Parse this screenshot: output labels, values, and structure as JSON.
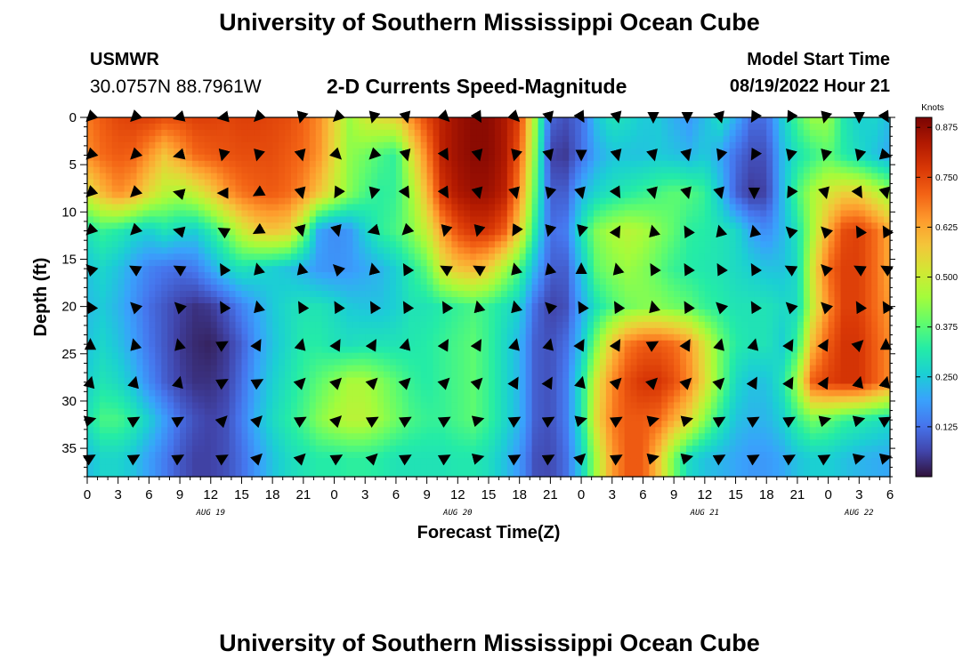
{
  "page": {
    "title_top": "University of Southern Mississippi Ocean Cube",
    "title_bottom": "University of Southern Mississippi Ocean Cube",
    "station_id": "USMWR",
    "station_coords": "30.0757N  88.7961W",
    "product_title": "2-D Currents Speed-Magnitude",
    "model_start_label": "Model Start Time",
    "model_start_value": "08/19/2022 Hour 21"
  },
  "colors": {
    "background": "#ffffff",
    "arrow": "#000000",
    "colormap": [
      "#30123b",
      "#4145ab",
      "#4675ed",
      "#39a2fc",
      "#1bcfd4",
      "#24eca6",
      "#61fc6c",
      "#a4fc3b",
      "#d1e834",
      "#f3c63a",
      "#fe9b2d",
      "#f36315",
      "#d93806",
      "#b11901",
      "#7a0403"
    ]
  },
  "chart_data": {
    "type": "heatmap",
    "title": "2-D Currents Speed-Magnitude",
    "xlabel": "Forecast Time(Z)",
    "ylabel": "Depth (ft)",
    "colorbar_label": "Knots",
    "colorbar_ticks": [
      "0.125",
      "0.250",
      "0.375",
      "0.500",
      "0.625",
      "0.750",
      "0.875"
    ],
    "colorbar_range": [
      0,
      0.9
    ],
    "x_tick_labels": [
      "0",
      "3",
      "6",
      "9",
      "12",
      "15",
      "18",
      "21",
      "0",
      "3",
      "6",
      "9",
      "12",
      "15",
      "18",
      "21",
      "0",
      "3",
      "6",
      "9",
      "12",
      "15",
      "18",
      "21",
      "0",
      "3",
      "6"
    ],
    "x_range_hours": [
      0,
      78
    ],
    "date_labels": [
      {
        "label": "AUG 19",
        "hour": 12
      },
      {
        "label": "AUG 20",
        "hour": 36
      },
      {
        "label": "AUG 21",
        "hour": 60
      },
      {
        "label": "AUG 22",
        "hour": 75
      }
    ],
    "y_tick_labels": [
      "0",
      "5",
      "10",
      "15",
      "20",
      "25",
      "30",
      "35"
    ],
    "y_ticks": [
      0,
      5,
      10,
      15,
      20,
      25,
      30,
      35
    ],
    "y_range": [
      0,
      38
    ],
    "depth_levels_ft": [
      0,
      4,
      8,
      12,
      16,
      20,
      24,
      28,
      32,
      36
    ],
    "time_hours": [
      0,
      1.5,
      3,
      4.5,
      6,
      7.5,
      9,
      10.5,
      12,
      13.5,
      15,
      16.5,
      18,
      19.5,
      21,
      22.5,
      24,
      25.5,
      27,
      28.5,
      30,
      31.5,
      33,
      34.5,
      36,
      37.5,
      39,
      40.5,
      42,
      43.5,
      45,
      46.5,
      48,
      49.5,
      51,
      52.5,
      54,
      55.5,
      57,
      58.5,
      60,
      61.5,
      63,
      64.5,
      66,
      67.5,
      69,
      70.5,
      72,
      73.5,
      75,
      76.5,
      78
    ],
    "speed_knots": [
      [
        0.68,
        0.72,
        0.75,
        0.76,
        0.76,
        0.74,
        0.74,
        0.76,
        0.76,
        0.75,
        0.76,
        0.76,
        0.75,
        0.74,
        0.71,
        0.66,
        0.56,
        0.44,
        0.51,
        0.54,
        0.56,
        0.66,
        0.75,
        0.82,
        0.86,
        0.88,
        0.88,
        0.84,
        0.76,
        0.45,
        0.11,
        0.08,
        0.12,
        0.24,
        0.3,
        0.28,
        0.25,
        0.25,
        0.21,
        0.18,
        0.23,
        0.29,
        0.21,
        0.12,
        0.12,
        0.25,
        0.36,
        0.44,
        0.44,
        0.31,
        0.26,
        0.27,
        0.23
      ],
      [
        0.66,
        0.7,
        0.72,
        0.71,
        0.65,
        0.58,
        0.64,
        0.7,
        0.72,
        0.73,
        0.74,
        0.74,
        0.74,
        0.72,
        0.7,
        0.65,
        0.54,
        0.43,
        0.4,
        0.36,
        0.33,
        0.52,
        0.67,
        0.82,
        0.86,
        0.88,
        0.88,
        0.84,
        0.72,
        0.42,
        0.06,
        0.05,
        0.12,
        0.2,
        0.24,
        0.24,
        0.24,
        0.25,
        0.24,
        0.22,
        0.25,
        0.2,
        0.12,
        0.08,
        0.08,
        0.22,
        0.3,
        0.34,
        0.38,
        0.32,
        0.28,
        0.24,
        0.2
      ],
      [
        0.52,
        0.6,
        0.66,
        0.62,
        0.54,
        0.48,
        0.46,
        0.5,
        0.56,
        0.64,
        0.69,
        0.71,
        0.72,
        0.7,
        0.66,
        0.58,
        0.5,
        0.42,
        0.36,
        0.33,
        0.34,
        0.45,
        0.6,
        0.78,
        0.84,
        0.86,
        0.86,
        0.82,
        0.66,
        0.38,
        0.1,
        0.1,
        0.22,
        0.27,
        0.3,
        0.32,
        0.34,
        0.36,
        0.38,
        0.37,
        0.34,
        0.24,
        0.1,
        0.05,
        0.06,
        0.22,
        0.36,
        0.46,
        0.52,
        0.56,
        0.56,
        0.5,
        0.44
      ],
      [
        0.3,
        0.34,
        0.32,
        0.28,
        0.26,
        0.3,
        0.27,
        0.26,
        0.32,
        0.4,
        0.5,
        0.56,
        0.58,
        0.56,
        0.42,
        0.2,
        0.16,
        0.18,
        0.26,
        0.33,
        0.36,
        0.42,
        0.5,
        0.64,
        0.74,
        0.78,
        0.78,
        0.72,
        0.56,
        0.32,
        0.12,
        0.14,
        0.3,
        0.42,
        0.46,
        0.48,
        0.46,
        0.42,
        0.38,
        0.33,
        0.32,
        0.3,
        0.28,
        0.2,
        0.16,
        0.22,
        0.3,
        0.46,
        0.62,
        0.74,
        0.76,
        0.7,
        0.62
      ],
      [
        0.24,
        0.27,
        0.24,
        0.19,
        0.15,
        0.13,
        0.12,
        0.14,
        0.2,
        0.26,
        0.3,
        0.28,
        0.26,
        0.24,
        0.21,
        0.18,
        0.17,
        0.18,
        0.2,
        0.22,
        0.26,
        0.32,
        0.38,
        0.52,
        0.58,
        0.6,
        0.56,
        0.46,
        0.36,
        0.22,
        0.1,
        0.1,
        0.24,
        0.38,
        0.42,
        0.44,
        0.42,
        0.38,
        0.34,
        0.32,
        0.31,
        0.3,
        0.28,
        0.26,
        0.24,
        0.24,
        0.28,
        0.52,
        0.7,
        0.76,
        0.76,
        0.7,
        0.62
      ],
      [
        0.23,
        0.25,
        0.22,
        0.17,
        0.12,
        0.09,
        0.06,
        0.04,
        0.05,
        0.09,
        0.15,
        0.2,
        0.25,
        0.28,
        0.3,
        0.3,
        0.28,
        0.25,
        0.24,
        0.24,
        0.26,
        0.3,
        0.3,
        0.32,
        0.34,
        0.36,
        0.34,
        0.3,
        0.26,
        0.12,
        0.06,
        0.08,
        0.2,
        0.3,
        0.36,
        0.4,
        0.42,
        0.42,
        0.4,
        0.38,
        0.34,
        0.32,
        0.3,
        0.3,
        0.3,
        0.28,
        0.28,
        0.5,
        0.66,
        0.76,
        0.76,
        0.7,
        0.64
      ],
      [
        0.24,
        0.27,
        0.24,
        0.19,
        0.13,
        0.09,
        0.05,
        0.03,
        0.02,
        0.05,
        0.1,
        0.18,
        0.24,
        0.28,
        0.32,
        0.32,
        0.3,
        0.29,
        0.3,
        0.3,
        0.3,
        0.31,
        0.32,
        0.34,
        0.36,
        0.38,
        0.34,
        0.28,
        0.22,
        0.1,
        0.08,
        0.12,
        0.24,
        0.42,
        0.58,
        0.68,
        0.72,
        0.72,
        0.7,
        0.64,
        0.52,
        0.4,
        0.32,
        0.3,
        0.3,
        0.26,
        0.34,
        0.6,
        0.72,
        0.78,
        0.78,
        0.72,
        0.66
      ],
      [
        0.26,
        0.3,
        0.28,
        0.23,
        0.16,
        0.1,
        0.06,
        0.04,
        0.04,
        0.06,
        0.12,
        0.2,
        0.26,
        0.3,
        0.34,
        0.38,
        0.42,
        0.46,
        0.46,
        0.42,
        0.38,
        0.34,
        0.32,
        0.34,
        0.36,
        0.38,
        0.34,
        0.28,
        0.22,
        0.1,
        0.08,
        0.14,
        0.3,
        0.52,
        0.66,
        0.74,
        0.78,
        0.78,
        0.74,
        0.66,
        0.54,
        0.4,
        0.28,
        0.24,
        0.24,
        0.3,
        0.46,
        0.72,
        0.76,
        0.78,
        0.78,
        0.72,
        0.66
      ],
      [
        0.3,
        0.36,
        0.36,
        0.32,
        0.26,
        0.19,
        0.12,
        0.08,
        0.06,
        0.08,
        0.14,
        0.22,
        0.28,
        0.32,
        0.36,
        0.42,
        0.46,
        0.48,
        0.48,
        0.44,
        0.4,
        0.36,
        0.34,
        0.34,
        0.36,
        0.38,
        0.34,
        0.28,
        0.22,
        0.1,
        0.08,
        0.14,
        0.3,
        0.54,
        0.68,
        0.72,
        0.72,
        0.7,
        0.62,
        0.54,
        0.42,
        0.32,
        0.24,
        0.22,
        0.22,
        0.26,
        0.34,
        0.4,
        0.38,
        0.34,
        0.32,
        0.3,
        0.28
      ],
      [
        0.23,
        0.27,
        0.27,
        0.24,
        0.19,
        0.14,
        0.09,
        0.06,
        0.06,
        0.08,
        0.12,
        0.18,
        0.24,
        0.28,
        0.3,
        0.32,
        0.32,
        0.33,
        0.33,
        0.32,
        0.3,
        0.3,
        0.3,
        0.3,
        0.31,
        0.31,
        0.29,
        0.24,
        0.18,
        0.08,
        0.07,
        0.12,
        0.26,
        0.46,
        0.64,
        0.72,
        0.72,
        0.58,
        0.4,
        0.28,
        0.24,
        0.22,
        0.2,
        0.18,
        0.18,
        0.2,
        0.24,
        0.26,
        0.26,
        0.24,
        0.22,
        0.21,
        0.2
      ]
    ],
    "arrows": {
      "times_hours": [
        0.3,
        4.6,
        8.9,
        13.2,
        16.6,
        20.8,
        24.3,
        27.8,
        31.0,
        34.8,
        38.0,
        41.6,
        44.9,
        48.0,
        51.5,
        55.0,
        58.3,
        61.5,
        64.8,
        68.3,
        71.7,
        75.0,
        77.6
      ],
      "depths_ft": [
        0,
        4,
        8,
        12,
        16,
        20,
        24,
        28,
        32,
        36
      ],
      "angles_deg": [
        [
          225,
          225,
          255,
          260,
          225,
          195,
          225,
          195,
          165,
          135,
          150,
          135,
          165,
          150,
          165,
          180,
          180,
          165,
          210,
          210,
          195,
          180,
          150
        ],
        [
          225,
          225,
          255,
          195,
          195,
          165,
          135,
          225,
          165,
          150,
          165,
          195,
          165,
          180,
          165,
          165,
          165,
          200,
          210,
          195,
          195,
          195,
          105
        ],
        [
          225,
          225,
          285,
          270,
          240,
          165,
          210,
          195,
          150,
          150,
          165,
          165,
          195,
          165,
          150,
          165,
          165,
          165,
          180,
          210,
          165,
          150,
          165
        ],
        [
          225,
          225,
          285,
          300,
          240,
          165,
          165,
          255,
          225,
          195,
          195,
          210,
          195,
          195,
          30,
          345,
          330,
          345,
          345,
          315,
          315,
          330,
          330
        ],
        [
          315,
          300,
          300,
          330,
          345,
          345,
          315,
          345,
          330,
          300,
          300,
          345,
          345,
          0,
          345,
          330,
          330,
          330,
          330,
          300,
          315,
          300,
          300
        ],
        [
          330,
          315,
          315,
          330,
          345,
          330,
          330,
          330,
          330,
          330,
          345,
          345,
          315,
          330,
          330,
          345,
          330,
          315,
          330,
          315,
          315,
          330,
          330
        ],
        [
          0,
          345,
          345,
          60,
          30,
          15,
          30,
          30,
          15,
          30,
          30,
          15,
          15,
          30,
          30,
          60,
          30,
          15,
          15,
          30,
          30,
          45,
          0
        ],
        [
          15,
          15,
          15,
          60,
          60,
          45,
          45,
          45,
          45,
          45,
          45,
          30,
          30,
          15,
          45,
          45,
          45,
          45,
          30,
          30,
          30,
          15,
          15
        ],
        [
          75,
          60,
          60,
          45,
          45,
          60,
          45,
          60,
          60,
          60,
          75,
          60,
          60,
          75,
          60,
          75,
          75,
          60,
          60,
          60,
          75,
          75,
          60
        ],
        [
          60,
          60,
          60,
          60,
          45,
          45,
          60,
          45,
          60,
          60,
          75,
          60,
          60,
          45,
          60,
          75,
          75,
          60,
          60,
          60,
          60,
          75,
          75
        ]
      ]
    }
  }
}
